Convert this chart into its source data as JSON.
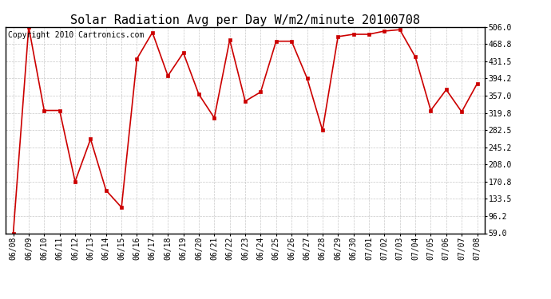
{
  "title": "Solar Radiation Avg per Day W/m2/minute 20100708",
  "copyright": "Copyright 2010 Cartronics.com",
  "labels": [
    "06/08",
    "06/09",
    "06/10",
    "06/11",
    "06/12",
    "06/13",
    "06/14",
    "06/15",
    "06/16",
    "06/17",
    "06/18",
    "06/19",
    "06/20",
    "06/21",
    "06/22",
    "06/23",
    "06/24",
    "06/25",
    "06/26",
    "06/27",
    "06/28",
    "06/29",
    "06/30",
    "07/01",
    "07/02",
    "07/03",
    "07/04",
    "07/05",
    "07/06",
    "07/07",
    "07/08"
  ],
  "values": [
    59.0,
    506.0,
    325.0,
    325.0,
    171.0,
    263.0,
    152.0,
    115.0,
    437.0,
    494.0,
    400.0,
    450.0,
    360.0,
    309.0,
    478.0,
    345.0,
    365.0,
    475.0,
    475.0,
    395.0,
    282.0,
    485.0,
    490.0,
    490.0,
    497.0,
    500.0,
    441.0,
    325.0,
    370.0,
    322.0,
    383.0
  ],
  "yticks": [
    59.0,
    96.2,
    133.5,
    170.8,
    208.0,
    245.2,
    282.5,
    319.8,
    357.0,
    394.2,
    431.5,
    468.8,
    506.0
  ],
  "line_color": "#cc0000",
  "marker_color": "#cc0000",
  "bg_color": "#ffffff",
  "grid_color": "#bbbbbb",
  "title_fontsize": 11,
  "copyright_fontsize": 7,
  "tick_fontsize": 7,
  "ylim_min": 59.0,
  "ylim_max": 506.0
}
